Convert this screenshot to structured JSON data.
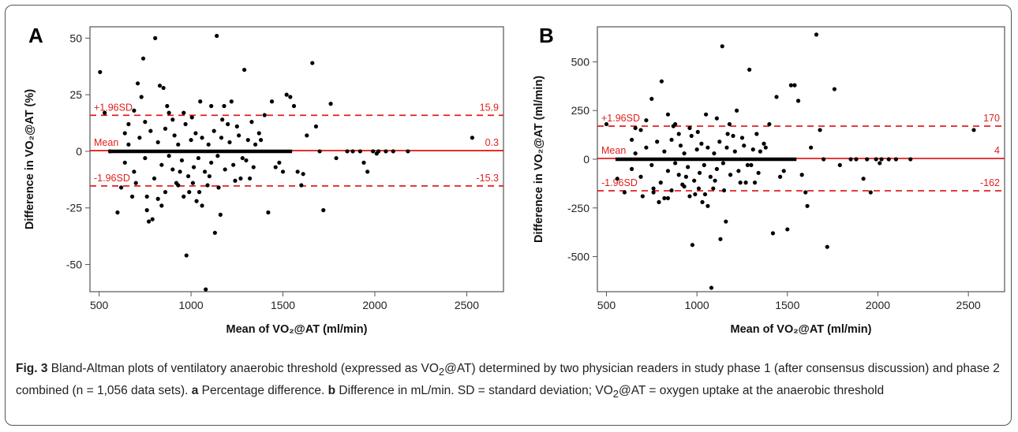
{
  "chart_data": [
    {
      "type": "scatter",
      "panel_label": "A",
      "xlabel": "Mean of VO₂@AT (ml/min)",
      "ylabel_html": "Difference in VO₂@AT (%)",
      "xlim": [
        450,
        2700
      ],
      "ylim": [
        -62,
        55
      ],
      "xticks": [
        500,
        1000,
        1500,
        2000,
        2500
      ],
      "yticks": [
        -50,
        -25,
        0,
        25,
        50
      ],
      "reference_lines": [
        {
          "label": "+1.96SD",
          "value": 15.9,
          "value_label": "15.9",
          "style": "dashed"
        },
        {
          "label": "Mean",
          "value": 0.3,
          "value_label": "0.3",
          "style": "solid"
        },
        {
          "label": "-1.96SD",
          "value": -15.3,
          "value_label": "-15.3",
          "style": "dashed"
        }
      ],
      "band_dense": {
        "x_range": [
          550,
          1550
        ],
        "y": 0
      },
      "points": [
        [
          505,
          35
        ],
        [
          530,
          17
        ],
        [
          560,
          0
        ],
        [
          600,
          -27
        ],
        [
          620,
          -16
        ],
        [
          640,
          8
        ],
        [
          660,
          12
        ],
        [
          680,
          -20
        ],
        [
          700,
          -14
        ],
        [
          710,
          30
        ],
        [
          730,
          24
        ],
        [
          740,
          41
        ],
        [
          750,
          13
        ],
        [
          760,
          -26
        ],
        [
          770,
          -31
        ],
        [
          790,
          -30
        ],
        [
          805,
          50
        ],
        [
          820,
          -21
        ],
        [
          830,
          29
        ],
        [
          850,
          28
        ],
        [
          860,
          -18
        ],
        [
          880,
          17
        ],
        [
          900,
          14
        ],
        [
          920,
          -14
        ],
        [
          940,
          -9
        ],
        [
          960,
          -20
        ],
        [
          975,
          -46
        ],
        [
          990,
          -18
        ],
        [
          1010,
          -14
        ],
        [
          1030,
          -22
        ],
        [
          1050,
          22
        ],
        [
          1060,
          -24
        ],
        [
          1080,
          -61
        ],
        [
          1090,
          -15
        ],
        [
          1110,
          20
        ],
        [
          1130,
          -36
        ],
        [
          1140,
          51
        ],
        [
          1150,
          -16
        ],
        [
          1160,
          -28
        ],
        [
          1180,
          20
        ],
        [
          1200,
          12
        ],
        [
          1220,
          22
        ],
        [
          1250,
          11
        ],
        [
          1270,
          -12
        ],
        [
          1290,
          36
        ],
        [
          1300,
          -4
        ],
        [
          1320,
          -12
        ],
        [
          1350,
          3
        ],
        [
          1380,
          5
        ],
        [
          1400,
          16
        ],
        [
          1420,
          -27
        ],
        [
          1440,
          22
        ],
        [
          1460,
          -7
        ],
        [
          1480,
          -5
        ],
        [
          1500,
          -9
        ],
        [
          1520,
          25
        ],
        [
          1540,
          24
        ],
        [
          1560,
          20
        ],
        [
          1580,
          -9
        ],
        [
          1600,
          -15
        ],
        [
          1610,
          -10
        ],
        [
          1630,
          7
        ],
        [
          1660,
          39
        ],
        [
          1680,
          11
        ],
        [
          1700,
          0
        ],
        [
          1720,
          -26
        ],
        [
          1760,
          21
        ],
        [
          1790,
          -3
        ],
        [
          1850,
          0
        ],
        [
          1880,
          0
        ],
        [
          1920,
          0
        ],
        [
          1940,
          -5
        ],
        [
          1960,
          -9
        ],
        [
          1990,
          0
        ],
        [
          2010,
          -1
        ],
        [
          2020,
          0
        ],
        [
          2060,
          0
        ],
        [
          2100,
          0
        ],
        [
          2180,
          0
        ],
        [
          2530,
          6
        ],
        [
          640,
          -5
        ],
        [
          660,
          3
        ],
        [
          690,
          -9
        ],
        [
          720,
          6
        ],
        [
          750,
          -3
        ],
        [
          780,
          9
        ],
        [
          800,
          -12
        ],
        [
          820,
          4
        ],
        [
          840,
          -6
        ],
        [
          860,
          10
        ],
        [
          880,
          -2
        ],
        [
          900,
          -8
        ],
        [
          910,
          7
        ],
        [
          930,
          3
        ],
        [
          950,
          -4
        ],
        [
          970,
          12
        ],
        [
          985,
          -11
        ],
        [
          1000,
          5
        ],
        [
          1015,
          -7
        ],
        [
          1025,
          8
        ],
        [
          1040,
          -3
        ],
        [
          1060,
          6
        ],
        [
          1075,
          -9
        ],
        [
          1095,
          3
        ],
        [
          1110,
          -5
        ],
        [
          1125,
          9
        ],
        [
          1145,
          -2
        ],
        [
          1165,
          6
        ],
        [
          1185,
          -8
        ],
        [
          1210,
          4
        ],
        [
          1230,
          -6
        ],
        [
          1260,
          7
        ],
        [
          1280,
          -3
        ],
        [
          1310,
          5
        ],
        [
          1340,
          -7
        ],
        [
          1370,
          8
        ],
        [
          690,
          18
        ],
        [
          760,
          -20
        ],
        [
          840,
          -24
        ],
        [
          870,
          20
        ],
        [
          930,
          -15
        ],
        [
          960,
          17
        ],
        [
          1005,
          15
        ],
        [
          1045,
          -18
        ],
        [
          1100,
          -11
        ],
        [
          1170,
          14
        ],
        [
          1240,
          -13
        ],
        [
          1330,
          13
        ]
      ]
    },
    {
      "type": "scatter",
      "panel_label": "B",
      "xlabel": "Mean of VO₂@AT (ml/min)",
      "ylabel_html": "Difference in VO₂@AT (ml/min)",
      "xlim": [
        450,
        2700
      ],
      "ylim": [
        -680,
        680
      ],
      "xticks": [
        500,
        1000,
        1500,
        2000,
        2500
      ],
      "yticks": [
        -500,
        -250,
        0,
        250,
        500
      ],
      "reference_lines": [
        {
          "label": "+1.96SD",
          "value": 170,
          "value_label": "170",
          "style": "dashed"
        },
        {
          "label": "Mean",
          "value": 4,
          "value_label": "4",
          "style": "solid"
        },
        {
          "label": "-1.96SD",
          "value": -162,
          "value_label": "-162",
          "style": "dashed"
        }
      ],
      "band_dense": {
        "x_range": [
          550,
          1550
        ],
        "y": 0
      },
      "points": [
        [
          500,
          180
        ],
        [
          560,
          -100
        ],
        [
          600,
          -170
        ],
        [
          640,
          100
        ],
        [
          660,
          160
        ],
        [
          700,
          -190
        ],
        [
          720,
          200
        ],
        [
          750,
          310
        ],
        [
          760,
          -150
        ],
        [
          790,
          -220
        ],
        [
          805,
          400
        ],
        [
          820,
          -200
        ],
        [
          840,
          230
        ],
        [
          860,
          -160
        ],
        [
          880,
          180
        ],
        [
          900,
          130
        ],
        [
          920,
          -130
        ],
        [
          940,
          -90
        ],
        [
          960,
          -190
        ],
        [
          975,
          -440
        ],
        [
          990,
          -180
        ],
        [
          1010,
          -150
        ],
        [
          1030,
          -220
        ],
        [
          1050,
          230
        ],
        [
          1060,
          -240
        ],
        [
          1080,
          -660
        ],
        [
          1090,
          -150
        ],
        [
          1110,
          210
        ],
        [
          1130,
          -410
        ],
        [
          1140,
          580
        ],
        [
          1150,
          -160
        ],
        [
          1160,
          -320
        ],
        [
          1180,
          180
        ],
        [
          1200,
          120
        ],
        [
          1220,
          250
        ],
        [
          1250,
          110
        ],
        [
          1270,
          -120
        ],
        [
          1290,
          460
        ],
        [
          1300,
          -30
        ],
        [
          1320,
          -120
        ],
        [
          1350,
          40
        ],
        [
          1380,
          60
        ],
        [
          1400,
          180
        ],
        [
          1420,
          -380
        ],
        [
          1440,
          320
        ],
        [
          1460,
          -90
        ],
        [
          1480,
          -60
        ],
        [
          1500,
          -360
        ],
        [
          1520,
          380
        ],
        [
          1540,
          380
        ],
        [
          1560,
          300
        ],
        [
          1580,
          -80
        ],
        [
          1600,
          -170
        ],
        [
          1610,
          -240
        ],
        [
          1630,
          60
        ],
        [
          1660,
          640
        ],
        [
          1680,
          150
        ],
        [
          1700,
          0
        ],
        [
          1720,
          -450
        ],
        [
          1760,
          360
        ],
        [
          1790,
          -30
        ],
        [
          1850,
          0
        ],
        [
          1880,
          0
        ],
        [
          1920,
          -100
        ],
        [
          1940,
          0
        ],
        [
          1960,
          -170
        ],
        [
          1990,
          0
        ],
        [
          2010,
          -20
        ],
        [
          2020,
          0
        ],
        [
          2060,
          0
        ],
        [
          2100,
          0
        ],
        [
          2180,
          0
        ],
        [
          2530,
          150
        ],
        [
          640,
          -50
        ],
        [
          660,
          30
        ],
        [
          690,
          -90
        ],
        [
          720,
          60
        ],
        [
          750,
          -30
        ],
        [
          780,
          90
        ],
        [
          800,
          -120
        ],
        [
          820,
          40
        ],
        [
          840,
          -60
        ],
        [
          860,
          100
        ],
        [
          880,
          -20
        ],
        [
          900,
          -80
        ],
        [
          910,
          70
        ],
        [
          930,
          30
        ],
        [
          950,
          -40
        ],
        [
          970,
          120
        ],
        [
          985,
          -110
        ],
        [
          1000,
          50
        ],
        [
          1015,
          -70
        ],
        [
          1025,
          80
        ],
        [
          1040,
          -30
        ],
        [
          1060,
          60
        ],
        [
          1075,
          -90
        ],
        [
          1095,
          30
        ],
        [
          1110,
          -50
        ],
        [
          1125,
          90
        ],
        [
          1145,
          -20
        ],
        [
          1165,
          60
        ],
        [
          1185,
          -80
        ],
        [
          1210,
          40
        ],
        [
          1230,
          -60
        ],
        [
          1260,
          70
        ],
        [
          1280,
          -30
        ],
        [
          1310,
          50
        ],
        [
          1340,
          -70
        ],
        [
          1370,
          80
        ],
        [
          690,
          150
        ],
        [
          760,
          -170
        ],
        [
          840,
          -200
        ],
        [
          870,
          170
        ],
        [
          930,
          -140
        ],
        [
          960,
          160
        ],
        [
          1005,
          140
        ],
        [
          1045,
          -180
        ],
        [
          1100,
          -110
        ],
        [
          1170,
          130
        ],
        [
          1240,
          -120
        ],
        [
          1330,
          130
        ]
      ]
    }
  ],
  "caption": {
    "fig_label": "Fig. 3",
    "text_1": " Bland-Altman plots of ventilatory anaerobic threshold (expressed as VO",
    "sub_1": "2",
    "text_2": "@AT) determined by two physician readers in study phase 1 (after consensus discussion) and phase 2 combined (n = 1,056 data sets). ",
    "a_label": "a",
    "text_3": " Percentage difference. ",
    "b_label": "b",
    "text_4": " Difference in mL/min. SD = standard deviation; VO",
    "sub_2": "2",
    "text_5": "@AT = oxygen uptake at the anaerobic threshold"
  },
  "colors": {
    "refline": "#e02020",
    "points": "#000000",
    "axis": "#555555"
  }
}
